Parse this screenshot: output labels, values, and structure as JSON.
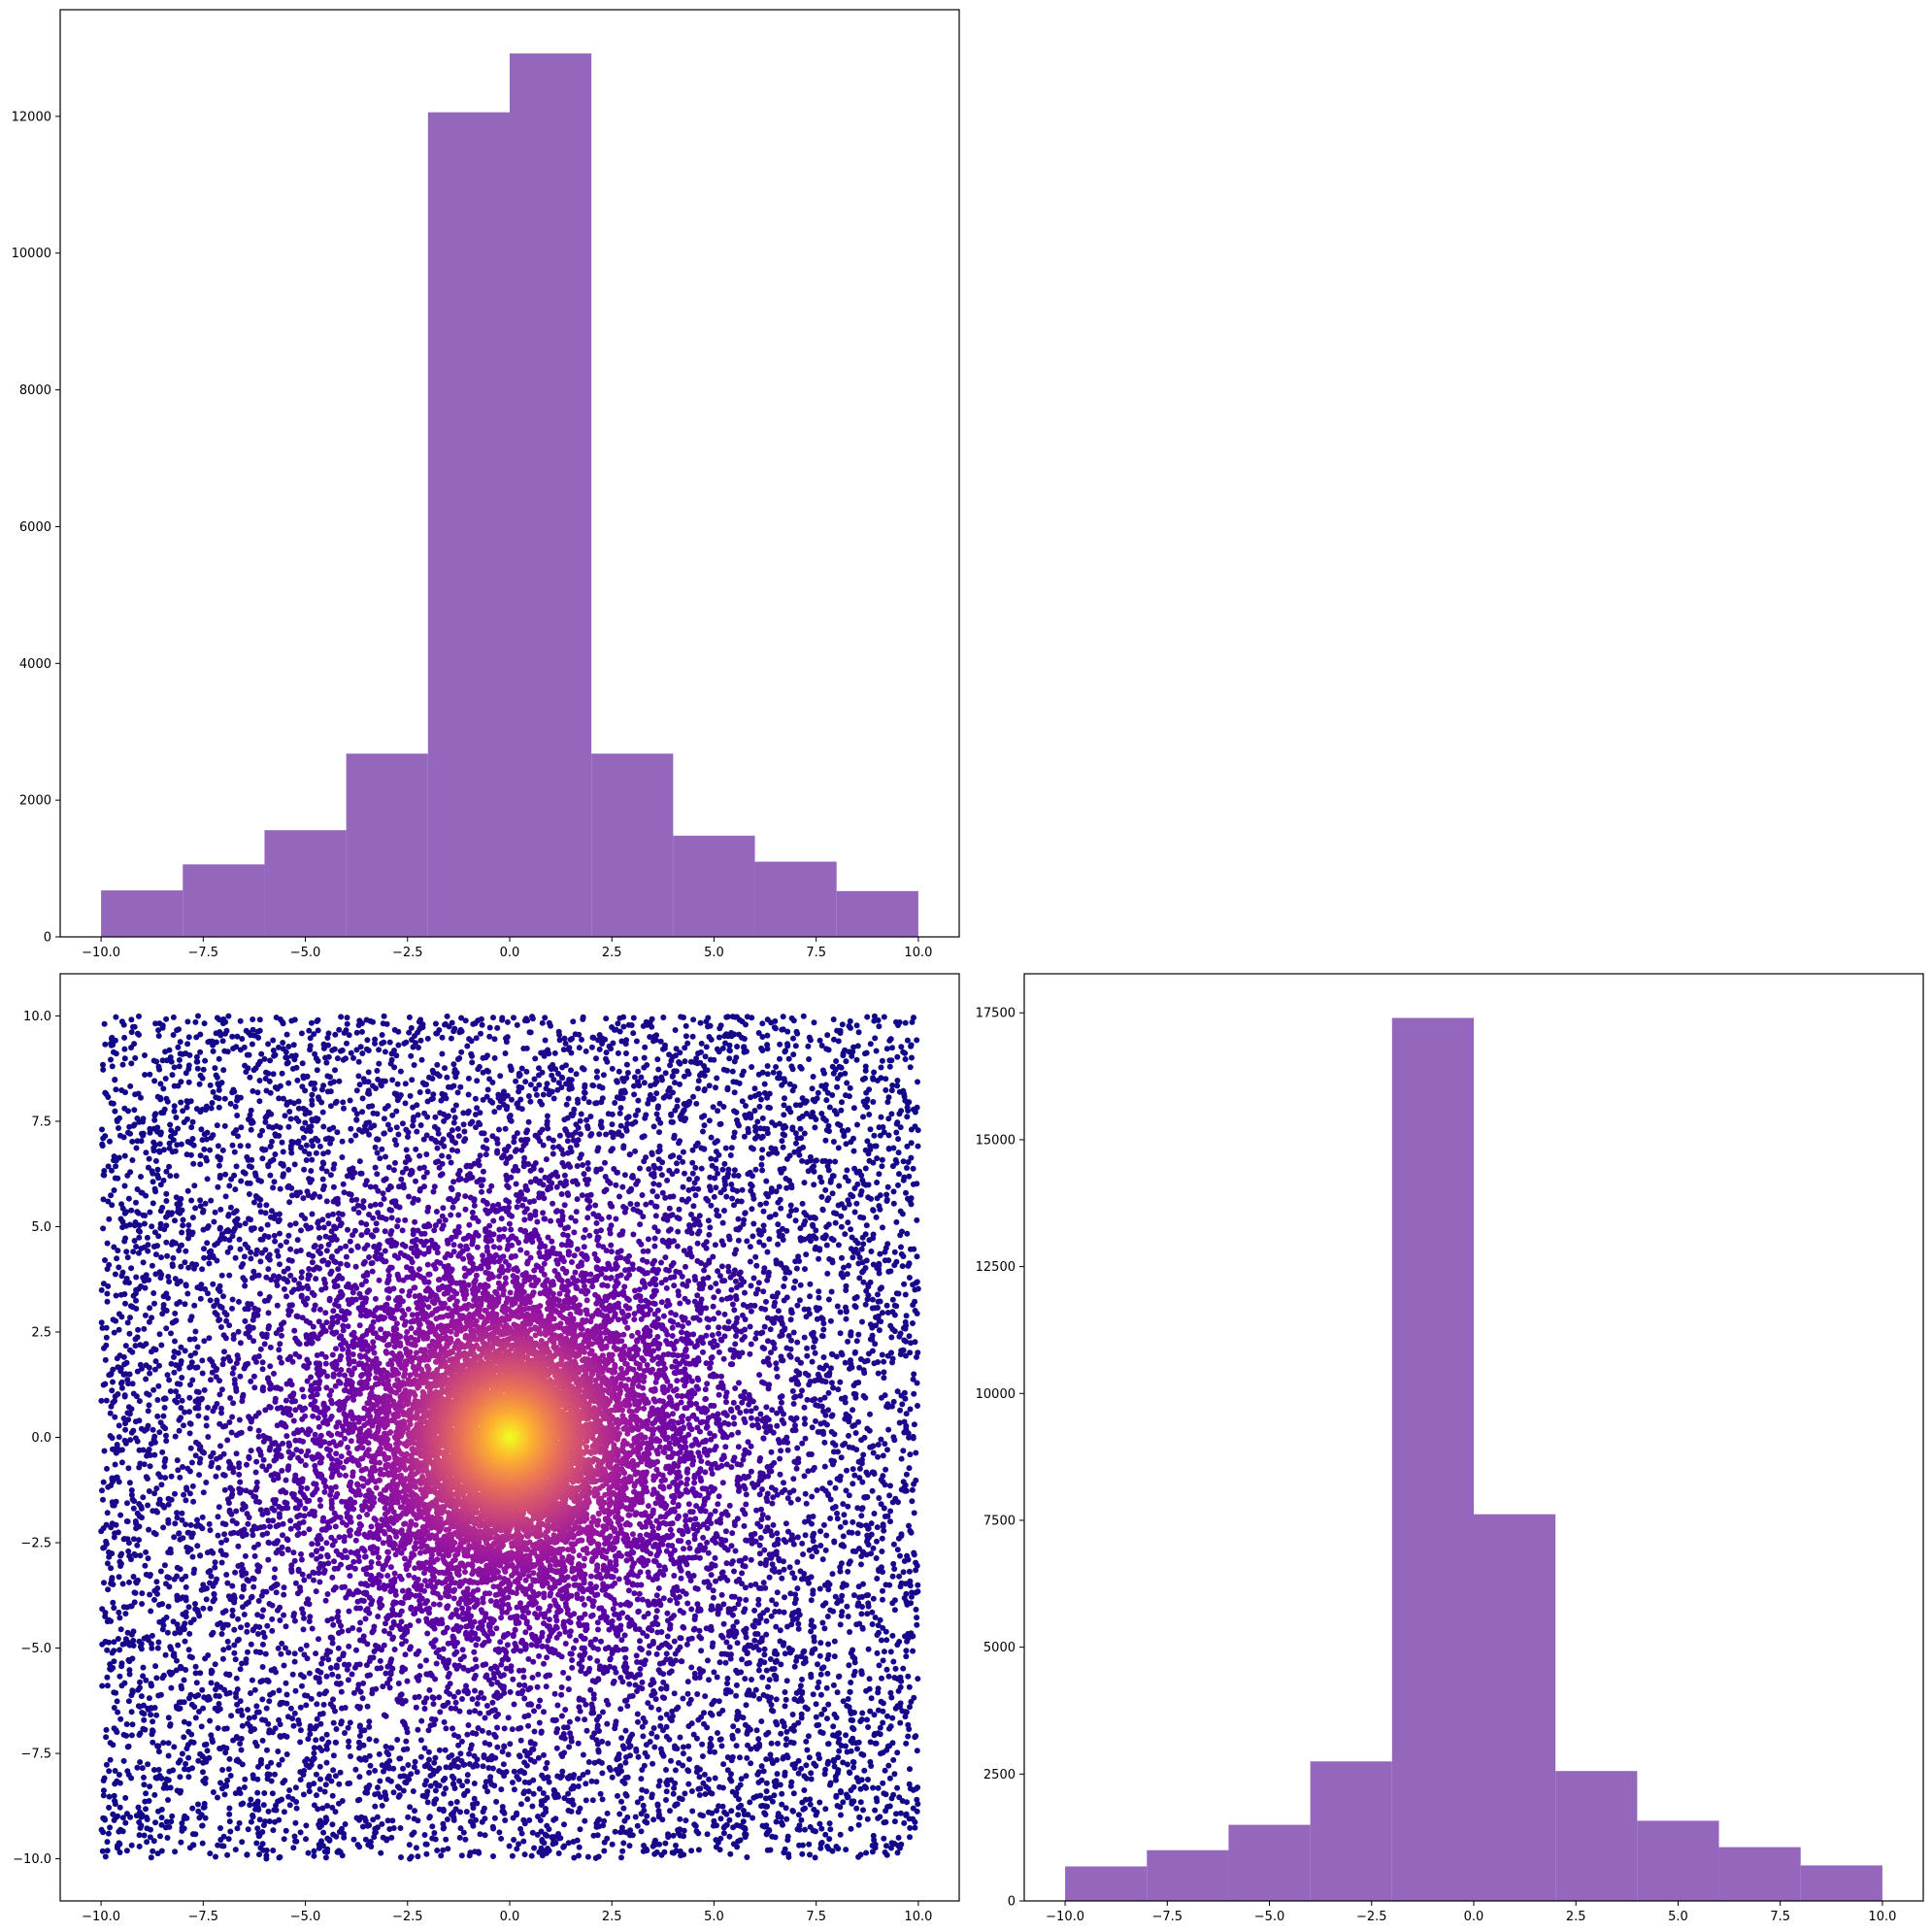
{
  "chart_data": [
    {
      "type": "bar",
      "panel": "top-left",
      "title": "",
      "xlabel": "",
      "ylabel": "",
      "bin_edges": [
        -10,
        -8,
        -6,
        -4,
        -2,
        0,
        2,
        4,
        6,
        8,
        10
      ],
      "values": [
        680,
        1060,
        1560,
        2680,
        12060,
        12920,
        2680,
        1480,
        1100,
        670
      ],
      "xlim": [
        -11,
        11
      ],
      "ylim": [
        0,
        13560
      ],
      "xticks": [
        -10.0,
        -7.5,
        -5.0,
        -2.5,
        0.0,
        2.5,
        5.0,
        7.5,
        10.0
      ],
      "xtick_labels": [
        "−10.0",
        "−7.5",
        "−5.0",
        "−2.5",
        "0.0",
        "2.5",
        "5.0",
        "7.5",
        "10.0"
      ],
      "yticks": [
        0,
        2000,
        4000,
        6000,
        8000,
        10000,
        12000
      ],
      "ytick_labels": [
        "0",
        "2000",
        "4000",
        "6000",
        "8000",
        "10000",
        "12000"
      ],
      "bar_color": "#9467bd",
      "grid": false
    },
    {
      "type": "scatter",
      "panel": "bottom-left",
      "title": "",
      "xlabel": "",
      "ylabel": "",
      "description_of_points": "about 20000 points spread over a square from -10 to 10 on both axes, denser toward the center; each point colored by closeness to the origin with the plasma colormap (dark purple far away, bright yellow at the center)",
      "point_count": 20000,
      "x_range": [
        -10,
        10
      ],
      "y_range": [
        -10,
        10
      ],
      "colormap": [
        "#0d0887",
        "#5c01a6",
        "#9c179e",
        "#cc4778",
        "#ed7953",
        "#fdb42f",
        "#f0f921"
      ],
      "xlim": [
        -11,
        11
      ],
      "ylim": [
        -11,
        11
      ],
      "xticks": [
        -10.0,
        -7.5,
        -5.0,
        -2.5,
        0.0,
        2.5,
        5.0,
        7.5,
        10.0
      ],
      "xtick_labels": [
        "−10.0",
        "−7.5",
        "−5.0",
        "−2.5",
        "0.0",
        "2.5",
        "5.0",
        "7.5",
        "10.0"
      ],
      "yticks": [
        -10.0,
        -7.5,
        -5.0,
        -2.5,
        0.0,
        2.5,
        5.0,
        7.5,
        10.0
      ],
      "ytick_labels": [
        "−10.0",
        "−7.5",
        "−5.0",
        "−2.5",
        "0.0",
        "2.5",
        "5.0",
        "7.5",
        "10.0"
      ],
      "grid": false
    },
    {
      "type": "bar",
      "panel": "bottom-right",
      "title": "",
      "xlabel": "",
      "ylabel": "",
      "bin_edges": [
        -10,
        -8,
        -6,
        -4,
        -2,
        0,
        2,
        4,
        6,
        8,
        10
      ],
      "values": [
        680,
        1000,
        1500,
        2750,
        17400,
        7620,
        2560,
        1580,
        1060,
        700
      ],
      "xlim": [
        -11,
        11
      ],
      "ylim": [
        0,
        18270
      ],
      "xticks": [
        -10.0,
        -7.5,
        -5.0,
        -2.5,
        0.0,
        2.5,
        5.0,
        7.5,
        10.0
      ],
      "xtick_labels": [
        "−10.0",
        "−7.5",
        "−5.0",
        "−2.5",
        "0.0",
        "2.5",
        "5.0",
        "7.5",
        "10.0"
      ],
      "yticks": [
        0,
        2500,
        5000,
        7500,
        10000,
        12500,
        15000,
        17500
      ],
      "ytick_labels": [
        "0",
        "2500",
        "5000",
        "7500",
        "10000",
        "12500",
        "15000",
        "17500"
      ],
      "bar_color": "#9467bd",
      "grid": false
    }
  ]
}
